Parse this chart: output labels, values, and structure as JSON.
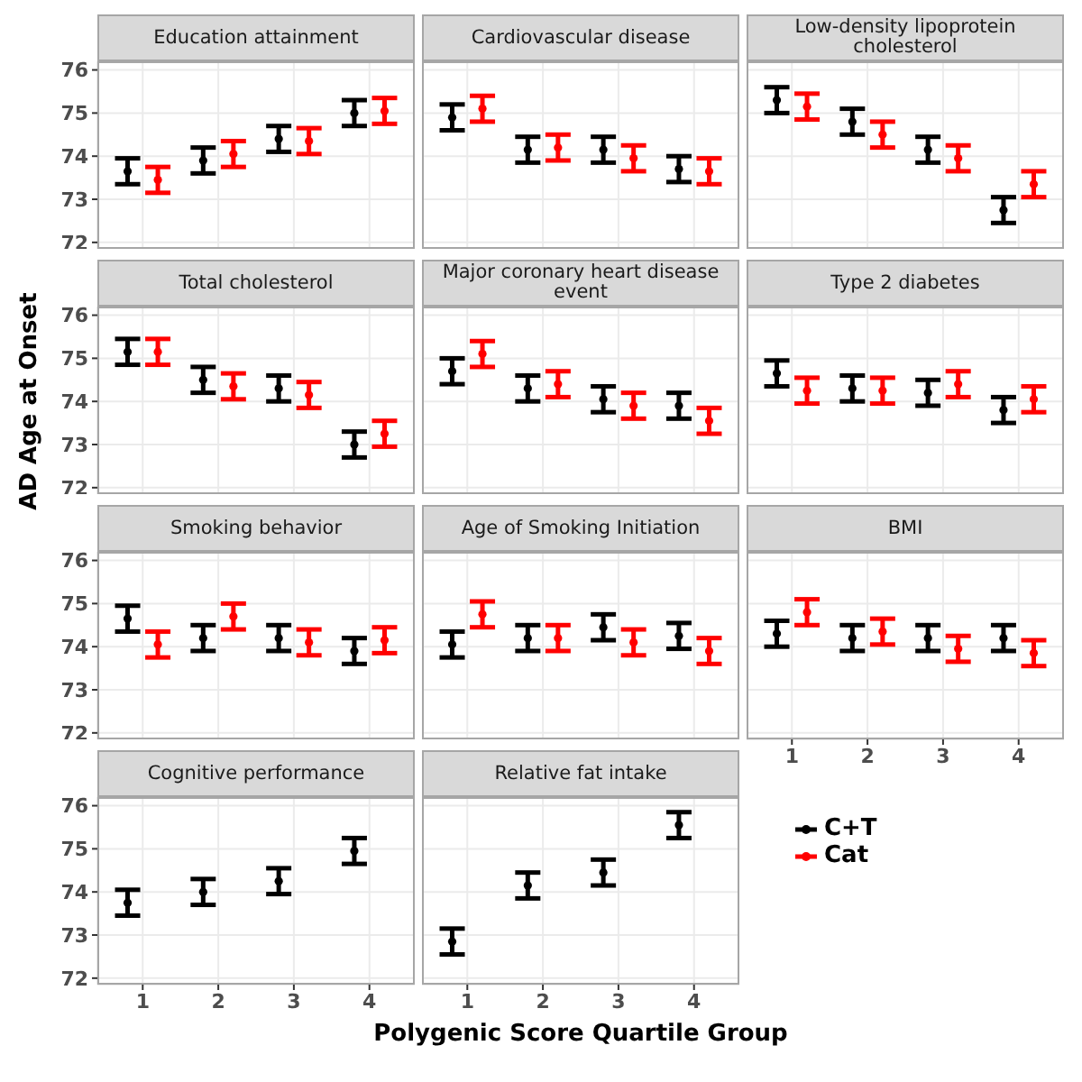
{
  "chart_data": [
    {
      "type": "scatter",
      "title": "Education attainment",
      "categories": [
        "1",
        "2",
        "3",
        "4"
      ],
      "ylim": [
        71.85,
        76.2
      ],
      "yticks": [
        72,
        73,
        74,
        75,
        76
      ],
      "grid": true,
      "marker": "circle",
      "tick_labels": "y",
      "series": [
        {
          "color": "#000000",
          "values": [
            73.65,
            73.9,
            74.4,
            75.0
          ],
          "errors": [
            0.3,
            0.3,
            0.3,
            0.3
          ]
        },
        {
          "color": "#ff0000",
          "values": [
            73.45,
            74.05,
            74.35,
            75.05
          ],
          "errors": [
            0.3,
            0.3,
            0.3,
            0.3
          ]
        }
      ]
    },
    {
      "type": "scatter",
      "title": "Cardiovascular disease",
      "categories": [
        "1",
        "2",
        "3",
        "4"
      ],
      "ylim": [
        71.85,
        76.2
      ],
      "yticks": [
        72,
        73,
        74,
        75,
        76
      ],
      "grid": true,
      "marker": "circle",
      "tick_labels": false,
      "series": [
        {
          "color": "#000000",
          "values": [
            74.9,
            74.15,
            74.15,
            73.7
          ],
          "errors": [
            0.3,
            0.3,
            0.3,
            0.3
          ]
        },
        {
          "color": "#ff0000",
          "values": [
            75.1,
            74.2,
            73.95,
            73.65
          ],
          "errors": [
            0.3,
            0.3,
            0.3,
            0.3
          ]
        }
      ]
    },
    {
      "type": "scatter",
      "title": "Low-density lipoprotein cholesterol",
      "categories": [
        "1",
        "2",
        "3",
        "4"
      ],
      "ylim": [
        71.85,
        76.2
      ],
      "yticks": [
        72,
        73,
        74,
        75,
        76
      ],
      "grid": true,
      "marker": "circle",
      "tick_labels": false,
      "series": [
        {
          "color": "#000000",
          "values": [
            75.3,
            74.8,
            74.15,
            72.75
          ],
          "errors": [
            0.3,
            0.3,
            0.3,
            0.3
          ]
        },
        {
          "color": "#ff0000",
          "values": [
            75.15,
            74.5,
            73.95,
            73.35
          ],
          "errors": [
            0.3,
            0.3,
            0.3,
            0.3
          ]
        }
      ]
    },
    {
      "type": "scatter",
      "title": "Total cholesterol",
      "ylabel": "AD Age at Onset",
      "categories": [
        "1",
        "2",
        "3",
        "4"
      ],
      "ylim": [
        71.85,
        76.2
      ],
      "yticks": [
        72,
        73,
        74,
        75,
        76
      ],
      "grid": true,
      "marker": "circle",
      "tick_labels": "y",
      "series": [
        {
          "color": "#000000",
          "values": [
            75.15,
            74.5,
            74.3,
            73.0
          ],
          "errors": [
            0.3,
            0.3,
            0.3,
            0.3
          ]
        },
        {
          "color": "#ff0000",
          "values": [
            75.15,
            74.35,
            74.15,
            73.25
          ],
          "errors": [
            0.3,
            0.3,
            0.3,
            0.3
          ]
        }
      ]
    },
    {
      "type": "scatter",
      "title": "Major coronary heart disease event",
      "categories": [
        "1",
        "2",
        "3",
        "4"
      ],
      "ylim": [
        71.85,
        76.2
      ],
      "yticks": [
        72,
        73,
        74,
        75,
        76
      ],
      "grid": true,
      "marker": "circle",
      "tick_labels": false,
      "series": [
        {
          "color": "#000000",
          "values": [
            74.7,
            74.3,
            74.05,
            73.9
          ],
          "errors": [
            0.3,
            0.3,
            0.3,
            0.3
          ]
        },
        {
          "color": "#ff0000",
          "values": [
            75.1,
            74.4,
            73.9,
            73.55
          ],
          "errors": [
            0.3,
            0.3,
            0.3,
            0.3
          ]
        }
      ]
    },
    {
      "type": "scatter",
      "title": "Type 2 diabetes",
      "categories": [
        "1",
        "2",
        "3",
        "4"
      ],
      "ylim": [
        71.85,
        76.2
      ],
      "yticks": [
        72,
        73,
        74,
        75,
        76
      ],
      "grid": true,
      "marker": "circle",
      "tick_labels": false,
      "series": [
        {
          "color": "#000000",
          "values": [
            74.65,
            74.3,
            74.2,
            73.8
          ],
          "errors": [
            0.3,
            0.3,
            0.3,
            0.3
          ]
        },
        {
          "color": "#ff0000",
          "values": [
            74.25,
            74.25,
            74.4,
            74.05
          ],
          "errors": [
            0.3,
            0.3,
            0.3,
            0.3
          ]
        }
      ]
    },
    {
      "type": "scatter",
      "title": "Smoking behavior",
      "categories": [
        "1",
        "2",
        "3",
        "4"
      ],
      "ylim": [
        71.85,
        76.2
      ],
      "yticks": [
        72,
        73,
        74,
        75,
        76
      ],
      "grid": true,
      "marker": "circle",
      "tick_labels": "y",
      "series": [
        {
          "color": "#000000",
          "values": [
            74.65,
            74.2,
            74.2,
            73.9
          ],
          "errors": [
            0.3,
            0.3,
            0.3,
            0.3
          ]
        },
        {
          "color": "#ff0000",
          "values": [
            74.05,
            74.7,
            74.1,
            74.15
          ],
          "errors": [
            0.3,
            0.3,
            0.3,
            0.3
          ]
        }
      ]
    },
    {
      "type": "scatter",
      "title": "Age of Smoking Initiation",
      "categories": [
        "1",
        "2",
        "3",
        "4"
      ],
      "ylim": [
        71.85,
        76.2
      ],
      "yticks": [
        72,
        73,
        74,
        75,
        76
      ],
      "grid": true,
      "marker": "circle",
      "tick_labels": false,
      "series": [
        {
          "color": "#000000",
          "values": [
            74.05,
            74.2,
            74.45,
            74.25
          ],
          "errors": [
            0.3,
            0.3,
            0.3,
            0.3
          ]
        },
        {
          "color": "#ff0000",
          "values": [
            74.75,
            74.2,
            74.1,
            73.9
          ],
          "errors": [
            0.3,
            0.3,
            0.3,
            0.3
          ]
        }
      ]
    },
    {
      "type": "scatter",
      "title": "BMI",
      "categories": [
        "1",
        "2",
        "3",
        "4"
      ],
      "ylim": [
        71.85,
        76.2
      ],
      "yticks": [
        72,
        73,
        74,
        75,
        76
      ],
      "grid": true,
      "marker": "circle",
      "tick_labels": "x",
      "series": [
        {
          "color": "#000000",
          "values": [
            74.3,
            74.2,
            74.2,
            74.2
          ],
          "errors": [
            0.3,
            0.3,
            0.3,
            0.3
          ]
        },
        {
          "color": "#ff0000",
          "values": [
            74.8,
            74.35,
            73.95,
            73.85
          ],
          "errors": [
            0.3,
            0.3,
            0.3,
            0.3
          ]
        }
      ]
    },
    {
      "type": "scatter",
      "title": "Cognitive performance",
      "categories": [
        "1",
        "2",
        "3",
        "4"
      ],
      "ylim": [
        71.85,
        76.2
      ],
      "yticks": [
        72,
        73,
        74,
        75,
        76
      ],
      "grid": true,
      "marker": "circle",
      "series": [
        {
          "color": "#000000",
          "values": [
            73.75,
            74.0,
            74.25,
            74.95
          ],
          "errors": [
            0.3,
            0.3,
            0.3,
            0.3
          ]
        }
      ]
    },
    {
      "type": "scatter",
      "title": "Relative fat intake",
      "xlabel": "Polygenic Score Quartile Group",
      "categories": [
        "1",
        "2",
        "3",
        "4"
      ],
      "ylim": [
        71.85,
        76.2
      ],
      "yticks": [
        72,
        73,
        74,
        75,
        76
      ],
      "grid": true,
      "marker": "circle",
      "tick_labels": "x",
      "legend": "right",
      "series": [
        {
          "name": "C+T",
          "color": "#000000",
          "values": [
            72.85,
            74.15,
            74.45,
            75.55
          ],
          "errors": [
            0.3,
            0.3,
            0.3,
            0.3
          ]
        },
        {
          "name": "Cat",
          "color": "#ff0000",
          "values": [
            null,
            null,
            null,
            null
          ],
          "errors": [
            null,
            null,
            null,
            null
          ]
        }
      ]
    }
  ]
}
